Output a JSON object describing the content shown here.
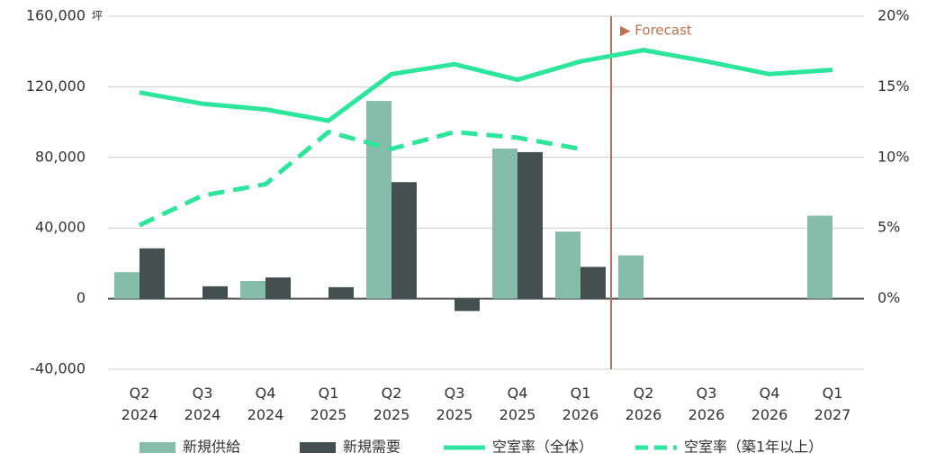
{
  "chart_data": {
    "type": "bar_line",
    "y_unit": "坪",
    "annotation": "▶ Forecast",
    "forecast_after_index": 7,
    "categories": [
      "Q2\n2024",
      "Q3\n2024",
      "Q4\n2024",
      "Q1\n2025",
      "Q2\n2025",
      "Q3\n2025",
      "Q4\n2025",
      "Q1\n2026",
      "Q2\n2026",
      "Q3\n2026",
      "Q4\n2026",
      "Q1\n2027"
    ],
    "series": [
      {
        "name": "新規供給",
        "kind": "bar",
        "color": "#85bcaa",
        "values": [
          15000,
          null,
          10000,
          null,
          112000,
          null,
          85000,
          38000,
          24500,
          null,
          null,
          47000
        ]
      },
      {
        "name": "新規需要",
        "kind": "bar",
        "color": "#44504f",
        "values": [
          28500,
          7000,
          12000,
          6500,
          66000,
          -7000,
          83000,
          18000,
          null,
          null,
          null,
          null
        ]
      },
      {
        "name": "空室率（全体）",
        "kind": "line",
        "axis": "y2",
        "color": "#2ee59d",
        "dash": false,
        "values": [
          14.6,
          13.8,
          13.4,
          12.6,
          15.9,
          16.6,
          15.5,
          16.8,
          17.6,
          16.8,
          15.9,
          16.2
        ]
      },
      {
        "name": "空室率（築1年以上）",
        "kind": "line",
        "axis": "y2",
        "color": "#2ee59d",
        "dash": true,
        "values": [
          5.2,
          7.3,
          8.1,
          11.8,
          10.6,
          11.8,
          11.4,
          10.6,
          null,
          null,
          null,
          null
        ]
      }
    ],
    "ylim": [
      -40000,
      160000
    ],
    "yticks": [
      {
        "value": -40000,
        "label": "-40,000"
      },
      0,
      {
        "value": 40000,
        "label": "40,000"
      },
      {
        "value": 80000,
        "label": "80,000"
      },
      {
        "value": 120000,
        "label": "120,000"
      },
      {
        "value": 160000,
        "label": "160,000"
      }
    ],
    "y2lim": [
      -5,
      20
    ],
    "y2ticks": [
      {
        "value": 0,
        "label": "0%"
      },
      {
        "value": 5,
        "label": "5%"
      },
      {
        "value": 10,
        "label": "10%"
      },
      {
        "value": 15,
        "label": "15%"
      },
      {
        "value": 20,
        "label": "20%"
      }
    ],
    "grid": true
  }
}
